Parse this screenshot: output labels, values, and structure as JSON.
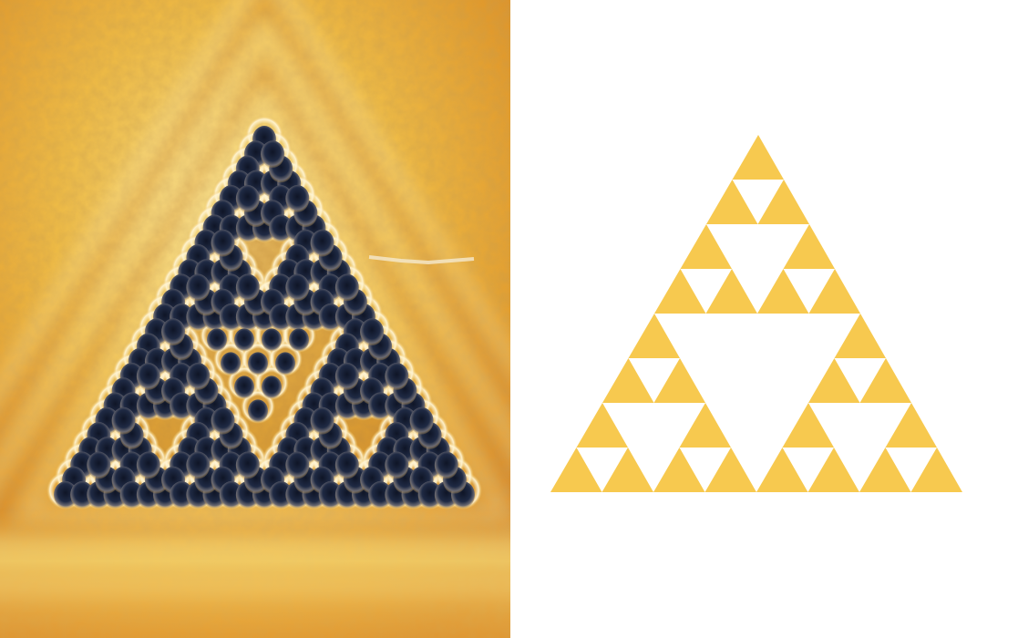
{
  "stm_image": {
    "depiction": "stm-surface-with-triangular-fractal-lattice",
    "colors": {
      "surface_light": "#f7dc6f",
      "surface_mid": "#e9ac33",
      "surface_dark": "#c9761c",
      "pit": "#1b2236",
      "rim": "#fff6d8"
    },
    "fractal_generations": 3
  },
  "fractal_diagram": {
    "depiction": "sierpinski-triangle",
    "generations": 3,
    "colors": {
      "fill": "#f7c94f",
      "background": "#ffffff"
    }
  }
}
